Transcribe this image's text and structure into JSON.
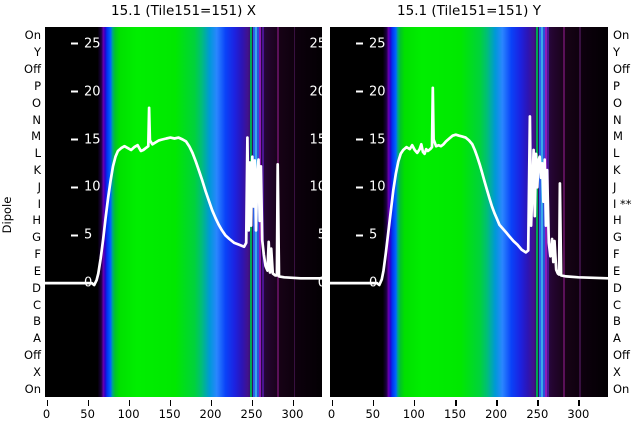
{
  "figure": {
    "background": "#ffffff"
  },
  "dipole_axis": {
    "label": "Dipole",
    "left_labels": [
      "On",
      "Y",
      "Off",
      "P",
      "O",
      "N",
      "M",
      "L",
      "K",
      "J",
      "I",
      "H",
      "G",
      "F",
      "E",
      "D",
      "C",
      "B",
      "A",
      "Off",
      "X",
      "On"
    ],
    "right_labels": [
      "On",
      "Y",
      "Off",
      "P",
      "O",
      "N",
      "M",
      "L",
      "K",
      "J",
      "I **",
      "H",
      "G",
      "F",
      "E",
      "D",
      "C",
      "B",
      "A",
      "Off",
      "X",
      "On"
    ]
  },
  "chart_data": {
    "type": "heatmap",
    "description": "Two spectrogram panels (dipole row vs frequency channel, spectral colormap) with an overlaid white median power-spectrum line for X and Y polarisations of Tile151",
    "x_axis": {
      "ticks": [
        0,
        50,
        100,
        150,
        200,
        250,
        300
      ],
      "range": [
        -2,
        336
      ],
      "grid": false
    },
    "y_axis": {
      "ticks": [
        0,
        5,
        10,
        15,
        20,
        25
      ],
      "range": [
        -11.9,
        26.75
      ]
    },
    "legend": "none",
    "colormap_gradient_stops": [
      [
        0.0,
        "#000000"
      ],
      [
        0.19,
        "#000000"
      ],
      [
        0.203,
        "#1c0040"
      ],
      [
        0.211,
        "#6a00b4"
      ],
      [
        0.217,
        "#2800cc"
      ],
      [
        0.224,
        "#0032f0"
      ],
      [
        0.237,
        "#0064ff"
      ],
      [
        0.244,
        "#00a882"
      ],
      [
        0.253,
        "#00c428"
      ],
      [
        0.268,
        "#00e000"
      ],
      [
        0.33,
        "#00ee00"
      ],
      [
        0.47,
        "#00e800"
      ],
      [
        0.54,
        "#00d23c"
      ],
      [
        0.565,
        "#00be78"
      ],
      [
        0.595,
        "#0098d8"
      ],
      [
        0.62,
        "#2a86ff"
      ],
      [
        0.652,
        "#0a42f8"
      ],
      [
        0.685,
        "#1c22e0"
      ],
      [
        0.712,
        "#2d14b4"
      ],
      [
        0.732,
        "#42128c"
      ],
      [
        0.745,
        "#321066"
      ],
      [
        0.77,
        "#2a0a50"
      ],
      [
        0.8,
        "#240530"
      ],
      [
        0.85,
        "#160215"
      ],
      [
        0.93,
        "#0a000a"
      ],
      [
        1.0,
        "#030003"
      ]
    ],
    "colormap_lines": [
      [
        0.7415,
        "#00a850",
        2
      ],
      [
        0.75,
        "#2a62ea",
        2
      ],
      [
        0.758,
        "#38a8e8",
        2
      ],
      [
        0.7655,
        "#2a50da",
        2
      ],
      [
        0.7735,
        "#8c1ab8",
        2
      ],
      [
        0.7815,
        "#4a1492",
        2
      ],
      [
        0.838,
        "#5a1058",
        1.5
      ],
      [
        0.897,
        "#381040",
        1.5
      ]
    ],
    "panels": [
      {
        "name": "X",
        "title": "15.1 (Tile151=151) X",
        "right_inner_ticks": true,
        "curve": [
          [
            -2,
            0
          ],
          [
            30,
            0
          ],
          [
            50,
            0
          ],
          [
            55,
            0
          ],
          [
            58,
            -0.2
          ],
          [
            61,
            0.3
          ],
          [
            63,
            1.0
          ],
          [
            66,
            2.6
          ],
          [
            69,
            4.6
          ],
          [
            72,
            6.8
          ],
          [
            75,
            8.9
          ],
          [
            78,
            10.7
          ],
          [
            81,
            12.2
          ],
          [
            84,
            13.2
          ],
          [
            87,
            13.8
          ],
          [
            91,
            14.1
          ],
          [
            95,
            14.3
          ],
          [
            99,
            14.1
          ],
          [
            103,
            13.9
          ],
          [
            107,
            14.2
          ],
          [
            111,
            14.4
          ],
          [
            115,
            13.8
          ],
          [
            118,
            13.9
          ],
          [
            121,
            14.1
          ],
          [
            124,
            14.3
          ],
          [
            125,
            18.3
          ],
          [
            126,
            14.9
          ],
          [
            129,
            14.5
          ],
          [
            133,
            14.7
          ],
          [
            137,
            14.9
          ],
          [
            141,
            15.0
          ],
          [
            146,
            15.1
          ],
          [
            151,
            15.2
          ],
          [
            156,
            15.1
          ],
          [
            161,
            15.2
          ],
          [
            166,
            15.0
          ],
          [
            170,
            14.8
          ],
          [
            174,
            14.3
          ],
          [
            178,
            13.6
          ],
          [
            182,
            12.7
          ],
          [
            186,
            11.7
          ],
          [
            190,
            10.7
          ],
          [
            194,
            9.6
          ],
          [
            198,
            8.6
          ],
          [
            202,
            7.6
          ],
          [
            206,
            6.8
          ],
          [
            210,
            6.1
          ],
          [
            214,
            5.5
          ],
          [
            218,
            5.0
          ],
          [
            223,
            4.6
          ],
          [
            229,
            4.2
          ],
          [
            235,
            4.0
          ],
          [
            241,
            3.8
          ],
          [
            243.5,
            4.2
          ],
          [
            245,
            15.2
          ],
          [
            246.5,
            5.5
          ],
          [
            248,
            12.6
          ],
          [
            249.5,
            6.0
          ],
          [
            251,
            13.2
          ],
          [
            252.5,
            8.0
          ],
          [
            254,
            12.8
          ],
          [
            255.5,
            5.5
          ],
          [
            257,
            11.5
          ],
          [
            258.5,
            12.9
          ],
          [
            260,
            6.5
          ],
          [
            261.5,
            12.2
          ],
          [
            263,
            4.5
          ],
          [
            265,
            3.0
          ],
          [
            267,
            1.8
          ],
          [
            269.5,
            1.3
          ],
          [
            271,
            4.3
          ],
          [
            272.5,
            1.1
          ],
          [
            274,
            3.6
          ],
          [
            276,
            1.0
          ],
          [
            279,
            0.8
          ],
          [
            281,
            0.8
          ],
          [
            282,
            12.4
          ],
          [
            283.5,
            0.7
          ],
          [
            290,
            0.6
          ],
          [
            310,
            0.5
          ],
          [
            336,
            0.5
          ]
        ]
      },
      {
        "name": "Y",
        "title": "15.1 (Tile151=151) Y",
        "right_inner_ticks": false,
        "curve": [
          [
            -2,
            0
          ],
          [
            30,
            0
          ],
          [
            50,
            0
          ],
          [
            55,
            0
          ],
          [
            58,
            -0.2
          ],
          [
            61,
            0.4
          ],
          [
            63,
            1.3
          ],
          [
            66,
            3.2
          ],
          [
            69,
            5.4
          ],
          [
            72,
            7.6
          ],
          [
            75,
            9.7
          ],
          [
            78,
            11.4
          ],
          [
            81,
            12.7
          ],
          [
            84,
            13.5
          ],
          [
            87,
            13.9
          ],
          [
            91,
            14.2
          ],
          [
            95,
            14.0
          ],
          [
            98,
            14.4
          ],
          [
            101,
            13.9
          ],
          [
            104,
            13.6
          ],
          [
            107,
            14.0
          ],
          [
            109,
            14.5
          ],
          [
            111,
            13.7
          ],
          [
            113,
            13.5
          ],
          [
            115,
            14.0
          ],
          [
            117,
            13.8
          ],
          [
            120,
            14.0
          ],
          [
            122,
            14.2
          ],
          [
            123,
            20.4
          ],
          [
            124,
            15.0
          ],
          [
            127,
            14.3
          ],
          [
            130,
            14.4
          ],
          [
            133,
            14.3
          ],
          [
            136,
            14.5
          ],
          [
            139,
            14.8
          ],
          [
            143,
            15.1
          ],
          [
            147,
            15.4
          ],
          [
            151,
            15.5
          ],
          [
            155,
            15.4
          ],
          [
            159,
            15.3
          ],
          [
            163,
            15.2
          ],
          [
            167,
            14.9
          ],
          [
            171,
            14.5
          ],
          [
            174,
            13.9
          ],
          [
            177,
            13.2
          ],
          [
            180,
            12.4
          ],
          [
            183,
            11.5
          ],
          [
            186,
            10.6
          ],
          [
            189,
            9.7
          ],
          [
            192,
            8.8
          ],
          [
            195,
            8.0
          ],
          [
            198,
            7.3
          ],
          [
            201,
            6.7
          ],
          [
            204,
            6.1
          ],
          [
            208,
            5.7
          ],
          [
            212,
            5.3
          ],
          [
            216,
            4.9
          ],
          [
            221,
            4.4
          ],
          [
            226,
            4.0
          ],
          [
            231,
            3.5
          ],
          [
            236,
            3.2
          ],
          [
            239,
            3.4
          ],
          [
            241,
            17.4
          ],
          [
            242.5,
            6.0
          ],
          [
            244,
            9.5
          ],
          [
            245.5,
            13.9
          ],
          [
            247,
            7.0
          ],
          [
            248.5,
            13.5
          ],
          [
            250,
            10.0
          ],
          [
            251.5,
            12.8
          ],
          [
            253,
            13.2
          ],
          [
            254.5,
            11.0
          ],
          [
            256,
            12.5
          ],
          [
            257.5,
            8.5
          ],
          [
            259,
            12.9
          ],
          [
            260.5,
            6.0
          ],
          [
            262,
            11.8
          ],
          [
            264,
            4.2
          ],
          [
            266,
            2.8
          ],
          [
            268,
            4.6
          ],
          [
            269.5,
            2.2
          ],
          [
            271,
            4.4
          ],
          [
            273,
            1.4
          ],
          [
            275,
            1.0
          ],
          [
            276.5,
            0.9
          ],
          [
            277.5,
            10.4
          ],
          [
            279,
            0.8
          ],
          [
            285,
            0.7
          ],
          [
            300,
            0.6
          ],
          [
            336,
            0.5
          ]
        ]
      }
    ]
  }
}
